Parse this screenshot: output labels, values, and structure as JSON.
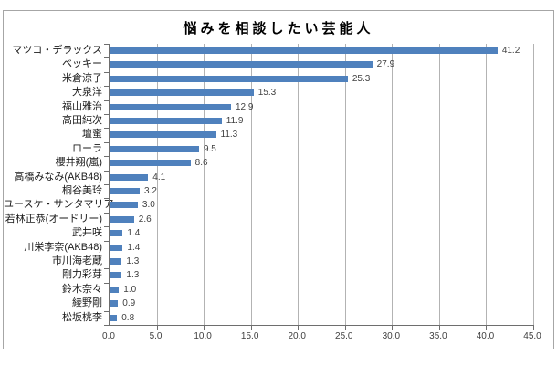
{
  "chart_data": {
    "type": "bar",
    "orientation": "horizontal",
    "title": "悩みを相談したい芸能人",
    "categories": [
      "マツコ・デラックス",
      "ベッキー",
      "米倉涼子",
      "大泉洋",
      "福山雅治",
      "高田純次",
      "壇蜜",
      "ローラ",
      "櫻井翔(嵐)",
      "高橋みなみ(AKB48)",
      "桐谷美玲",
      "ユースケ・サンタマリア",
      "若林正恭(オードリー)",
      "武井咲",
      "川栄李奈(AKB48)",
      "市川海老蔵",
      "剛力彩芽",
      "鈴木奈々",
      "綾野剛",
      "松坂桃李"
    ],
    "values": [
      41.2,
      27.9,
      25.3,
      15.3,
      12.9,
      11.9,
      11.3,
      9.5,
      8.6,
      4.1,
      3.2,
      3.0,
      2.6,
      1.4,
      1.4,
      1.3,
      1.3,
      1.0,
      0.9,
      0.8
    ],
    "value_labels": [
      "41.2",
      "27.9",
      "25.3",
      "15.3",
      "12.9",
      "11.9",
      "11.3",
      "9.5",
      "8.6",
      "4.1",
      "3.2",
      "3.0",
      "2.6",
      "1.4",
      "1.4",
      "1.3",
      "1.3",
      "1.0",
      "0.9",
      "0.8"
    ],
    "x_ticks": [
      "0.0",
      "5.0",
      "10.0",
      "15.0",
      "20.0",
      "25.0",
      "30.0",
      "35.0",
      "40.0",
      "45.0"
    ],
    "xlim": [
      0,
      45
    ],
    "xlabel": "",
    "ylabel": "",
    "legend": "none",
    "grid": "vertical",
    "bar_color": "#4f81bd",
    "gridline_color": "#b3b3b3",
    "axis_color": "#6e6e6e",
    "label_color": "#3f3f3f",
    "frame_border_color": "#a6a6a6"
  }
}
